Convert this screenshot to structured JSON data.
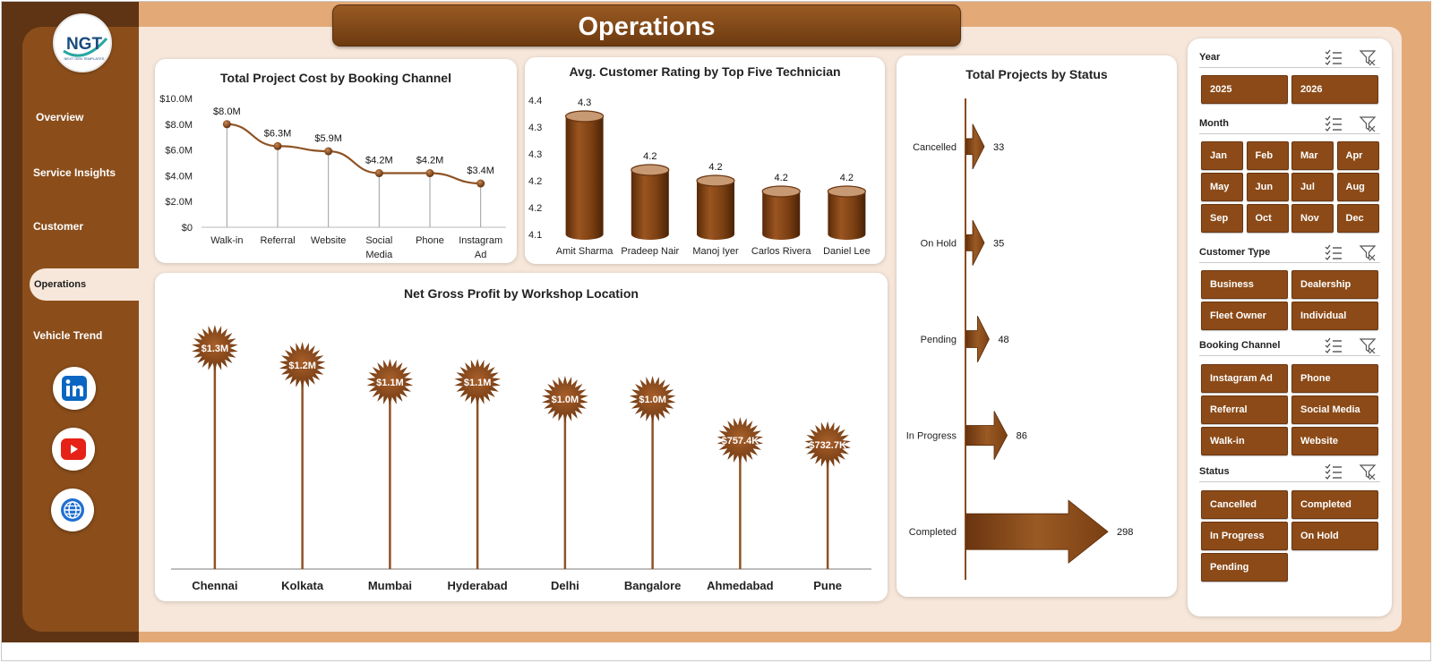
{
  "page_title": "Operations",
  "logo": {
    "text": "NGT",
    "subtext": "NEXT GEN TEMPLATES"
  },
  "nav": {
    "items": [
      "Overview",
      "Service Insights",
      "Customer",
      "Operations",
      "Vehicle Trend"
    ],
    "active": "Operations"
  },
  "social_icons": [
    "linkedin-icon",
    "youtube-icon",
    "globe-icon"
  ],
  "colors": {
    "brown_dark": "#5e3414",
    "brown": "#8b4e1b",
    "accent_line": "#8e5324",
    "bar": "#7a3f12"
  },
  "cost_chart": {
    "chart_data": {
      "type": "line",
      "title": "Total Project Cost by Booking Channel",
      "categories": [
        "Walk-in",
        "Referral",
        "Website",
        "Social Media",
        "Phone",
        "Instagram Ad"
      ],
      "category_lines": [
        [
          "Walk-in"
        ],
        [
          "Referral"
        ],
        [
          "Website"
        ],
        [
          "Social",
          "Media"
        ],
        [
          "Phone"
        ],
        [
          "Instagram",
          "Ad"
        ]
      ],
      "values": [
        8.0,
        6.3,
        5.9,
        4.2,
        4.2,
        3.4
      ],
      "data_labels": [
        "$8.0M",
        "$6.3M",
        "$5.9M",
        "$4.2M",
        "$4.2M",
        "$3.4M"
      ],
      "y_ticks": [
        0,
        2,
        4,
        6,
        8,
        10
      ],
      "y_tick_labels": [
        "$0",
        "$2.0M",
        "$4.0M",
        "$6.0M",
        "$8.0M",
        "$10.0M"
      ],
      "ylim": [
        0,
        10
      ]
    }
  },
  "rating_chart": {
    "chart_data": {
      "type": "bar",
      "title": "Avg. Customer Rating by  Top Five Technician",
      "categories": [
        "Amit Sharma",
        "Pradeep Nair",
        "Manoj Iyer",
        "Carlos Rivera",
        "Daniel Lee"
      ],
      "values": [
        4.32,
        4.22,
        4.2,
        4.18,
        4.18
      ],
      "data_labels": [
        "4.3",
        "4.2",
        "4.2",
        "4.2",
        "4.2"
      ],
      "y_ticks": [
        4.1,
        4.15,
        4.2,
        4.25,
        4.3,
        4.35
      ],
      "y_tick_labels": [
        "4.1",
        "4.2",
        "4.2",
        "4.3",
        "4.3",
        "4.4"
      ],
      "ylim": [
        4.1,
        4.35
      ]
    }
  },
  "status_chart": {
    "chart_data": {
      "type": "bar",
      "title": "Total Projects by Status",
      "categories": [
        "Cancelled",
        "On Hold",
        "Pending",
        "In Progress",
        "Completed"
      ],
      "values": [
        33,
        35,
        48,
        86,
        298
      ],
      "data_labels": [
        "33",
        "35",
        "48",
        "86",
        "298"
      ]
    }
  },
  "profit_chart": {
    "chart_data": {
      "type": "bar",
      "title": "Net Gross Profit by Workshop Location",
      "categories": [
        "Chennai",
        "Kolkata",
        "Mumbai",
        "Hyderabad",
        "Delhi",
        "Bangalore",
        "Ahmedabad",
        "Pune"
      ],
      "values": [
        1.3,
        1.2,
        1.1,
        1.1,
        1.0,
        1.0,
        0.7574,
        0.7327
      ],
      "data_labels": [
        "$1.3M",
        "$1.2M",
        "$1.1M",
        "$1.1M",
        "$1.0M",
        "$1.0M",
        "$757.4K",
        "$732.7K"
      ],
      "ylim": [
        0,
        1.4
      ]
    }
  },
  "slicers": {
    "year": {
      "label": "Year",
      "options": [
        "2025",
        "2026"
      ]
    },
    "month": {
      "label": "Month",
      "options": [
        "Jan",
        "Feb",
        "Mar",
        "Apr",
        "May",
        "Jun",
        "Jul",
        "Aug",
        "Sep",
        "Oct",
        "Nov",
        "Dec"
      ]
    },
    "customer_type": {
      "label": "Customer Type",
      "options": [
        "Business",
        "Dealership",
        "Fleet Owner",
        "Individual"
      ]
    },
    "booking_channel": {
      "label": "Booking Channel",
      "options": [
        "Instagram Ad",
        "Phone",
        "Referral",
        "Social Media",
        "Walk-in",
        "Website"
      ]
    },
    "status": {
      "label": "Status",
      "options": [
        "Cancelled",
        "Completed",
        "In Progress",
        "On Hold",
        "Pending"
      ]
    }
  }
}
